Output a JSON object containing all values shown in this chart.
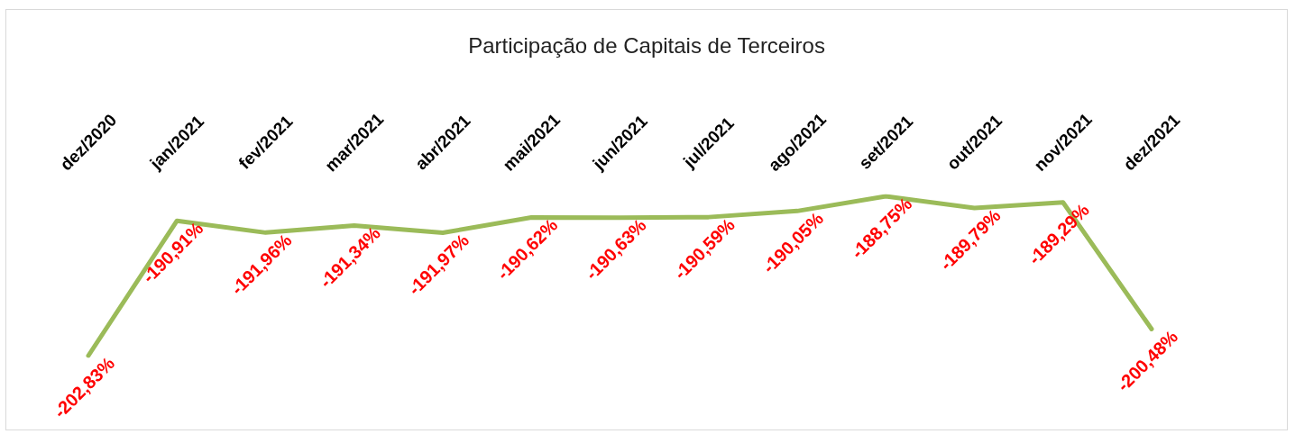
{
  "chart_data": {
    "type": "line",
    "title": "Participação de Capitais de Terceiros",
    "categories": [
      "dez/2020",
      "jan/2021",
      "fev/2021",
      "mar/2021",
      "abr/2021",
      "mai/2021",
      "jun/2021",
      "jul/2021",
      "ago/2021",
      "set/2021",
      "out/2021",
      "nov/2021",
      "dez/2021"
    ],
    "series": [
      {
        "color": "#9bbb59",
        "values": [
          -202.83,
          -190.91,
          -191.96,
          -191.34,
          -191.97,
          -190.62,
          -190.63,
          -190.59,
          -190.05,
          -188.75,
          -189.79,
          -189.29,
          -200.48
        ],
        "value_labels": [
          "-202,83%",
          "-190,91%",
          "-191,96%",
          "-191,34%",
          "-191,97%",
          "-190,62%",
          "-190,63%",
          "-190,59%",
          "-190,05%",
          "-188,75%",
          "-189,79%",
          "-189,29%",
          "-200,48%"
        ]
      }
    ],
    "marker": "none",
    "line_style": "solid"
  }
}
